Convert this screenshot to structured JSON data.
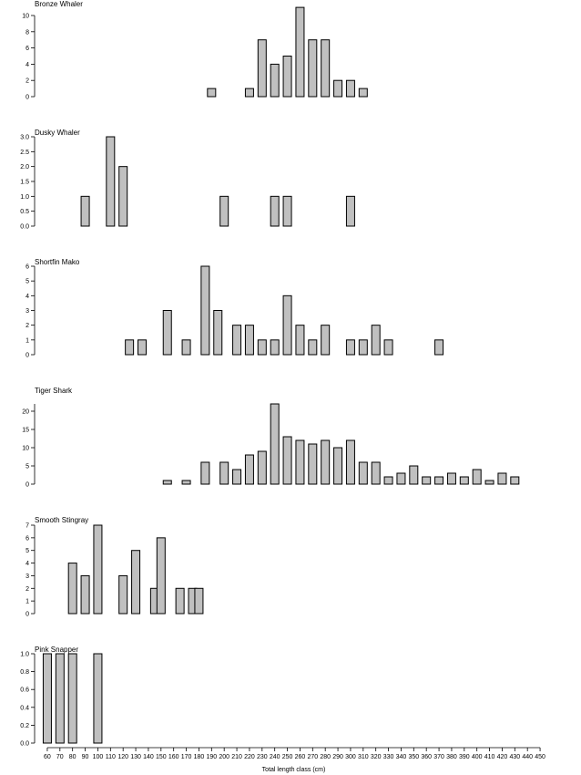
{
  "chart_data": {
    "type": "bar",
    "xlabel": "Total length class (cm)",
    "x_ticks": [
      60,
      70,
      80,
      90,
      100,
      110,
      120,
      130,
      140,
      150,
      160,
      170,
      180,
      190,
      200,
      210,
      220,
      230,
      240,
      250,
      260,
      270,
      280,
      290,
      300,
      310,
      320,
      330,
      340,
      350,
      360,
      370,
      380,
      390,
      400,
      410,
      420,
      430,
      440,
      450
    ],
    "xlim": [
      55,
      455
    ],
    "bar_fill": "#c0c0c0",
    "bar_stroke": "#000000",
    "panels": [
      {
        "title": "Bronze Whaler",
        "ylim": [
          0,
          10
        ],
        "y_ticks": [
          0,
          2,
          4,
          6,
          8,
          10
        ],
        "bars": [
          [
            190,
            1
          ],
          [
            220,
            1
          ],
          [
            230,
            7
          ],
          [
            240,
            4
          ],
          [
            250,
            5
          ],
          [
            260,
            11
          ],
          [
            270,
            7
          ],
          [
            280,
            7
          ],
          [
            290,
            2
          ],
          [
            300,
            2
          ],
          [
            310,
            1
          ]
        ]
      },
      {
        "title": "Dusky Whaler",
        "ylim": [
          0,
          3
        ],
        "y_ticks": [
          "0.0",
          "0.5",
          "1.0",
          "1.5",
          "2.0",
          "2.5",
          "3.0"
        ],
        "bars": [
          [
            90,
            1
          ],
          [
            110,
            3
          ],
          [
            120,
            2
          ],
          [
            200,
            1
          ],
          [
            240,
            1
          ],
          [
            250,
            1
          ],
          [
            300,
            1
          ]
        ]
      },
      {
        "title": "Shortfin Mako",
        "ylim": [
          0,
          6
        ],
        "y_ticks": [
          0,
          1,
          2,
          3,
          4,
          5,
          6
        ],
        "bars": [
          [
            125,
            1
          ],
          [
            135,
            1
          ],
          [
            155,
            3
          ],
          [
            170,
            1
          ],
          [
            185,
            6
          ],
          [
            195,
            3
          ],
          [
            210,
            2
          ],
          [
            220,
            2
          ],
          [
            230,
            1
          ],
          [
            240,
            1
          ],
          [
            250,
            4
          ],
          [
            260,
            2
          ],
          [
            270,
            1
          ],
          [
            280,
            2
          ],
          [
            300,
            1
          ],
          [
            310,
            1
          ],
          [
            320,
            2
          ],
          [
            330,
            1
          ],
          [
            370,
            1
          ]
        ]
      },
      {
        "title": "Tiger Shark",
        "ylim": [
          0,
          22
        ],
        "y_ticks": [
          0,
          5,
          10,
          15,
          20
        ],
        "bars": [
          [
            155,
            1
          ],
          [
            170,
            1
          ],
          [
            185,
            6
          ],
          [
            200,
            6
          ],
          [
            210,
            4
          ],
          [
            220,
            8
          ],
          [
            230,
            9
          ],
          [
            240,
            22
          ],
          [
            250,
            13
          ],
          [
            260,
            12
          ],
          [
            270,
            11
          ],
          [
            280,
            12
          ],
          [
            290,
            10
          ],
          [
            300,
            12
          ],
          [
            310,
            6
          ],
          [
            320,
            6
          ],
          [
            330,
            2
          ],
          [
            340,
            3
          ],
          [
            350,
            5
          ],
          [
            360,
            2
          ],
          [
            370,
            2
          ],
          [
            380,
            3
          ],
          [
            390,
            2
          ],
          [
            400,
            4
          ],
          [
            410,
            1
          ],
          [
            420,
            3
          ],
          [
            430,
            2
          ]
        ]
      },
      {
        "title": "Smooth Stingray",
        "ylim": [
          0,
          7
        ],
        "y_ticks": [
          0,
          1,
          2,
          3,
          4,
          5,
          6,
          7
        ],
        "bars": [
          [
            80,
            4
          ],
          [
            90,
            3
          ],
          [
            100,
            7
          ],
          [
            120,
            3
          ],
          [
            130,
            5
          ],
          [
            145,
            2
          ],
          [
            150,
            6
          ],
          [
            165,
            2
          ],
          [
            175,
            2
          ],
          [
            180,
            2
          ]
        ]
      },
      {
        "title": "Pink Snapper",
        "ylim": [
          0,
          1
        ],
        "y_ticks": [
          "0.0",
          "0.2",
          "0.4",
          "0.6",
          "0.8",
          "1.0"
        ],
        "bars": [
          [
            60,
            1
          ],
          [
            70,
            1
          ],
          [
            80,
            1
          ],
          [
            100,
            1
          ]
        ]
      }
    ]
  }
}
